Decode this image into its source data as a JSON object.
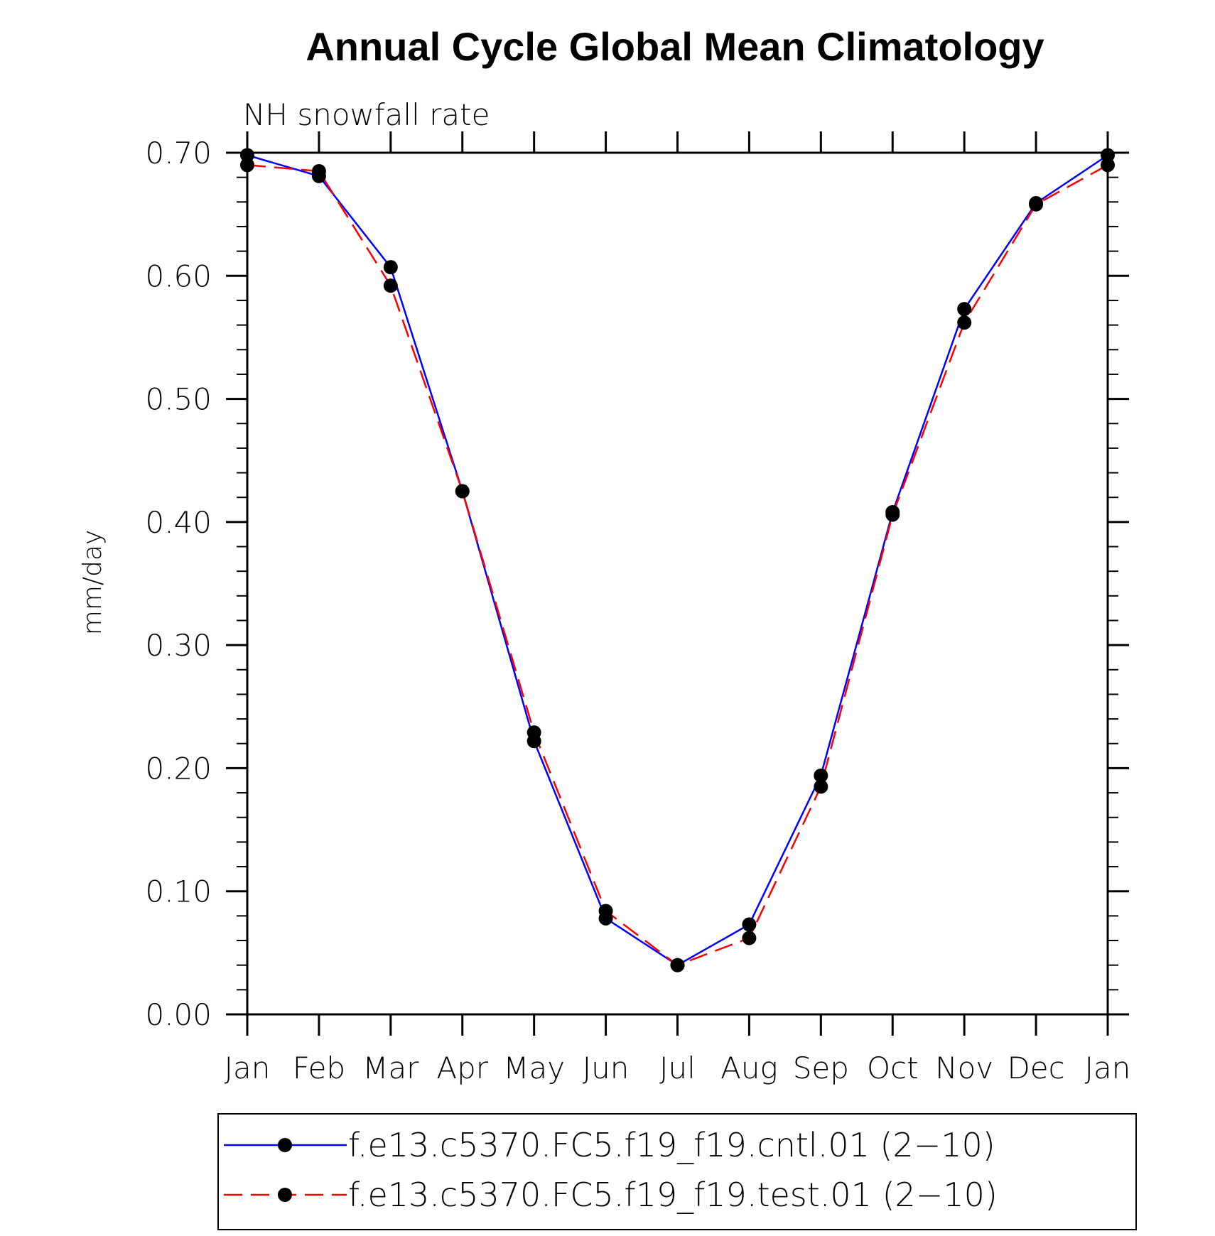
{
  "chart_data": {
    "type": "line",
    "title": "Annual Cycle Global Mean Climatology",
    "subtitle": "NH snowfall rate",
    "ylabel": "mm/day",
    "xlabel": "",
    "categories": [
      "Jan",
      "Feb",
      "Mar",
      "Apr",
      "May",
      "Jun",
      "Jul",
      "Aug",
      "Sep",
      "Oct",
      "Nov",
      "Dec",
      "Jan"
    ],
    "ylim": [
      0.0,
      0.7
    ],
    "yticks": [
      "0.00",
      "0.10",
      "0.20",
      "0.30",
      "0.40",
      "0.50",
      "0.60",
      "0.70"
    ],
    "grid": false,
    "legend_position": "bottom",
    "series": [
      {
        "name": "f.e13.c5370.FC5.f19_f19.cntl.01 (2−10)",
        "color": "#0000ff",
        "line_style": "solid",
        "marker": "filled-circle",
        "values": [
          0.698,
          0.681,
          0.607,
          0.425,
          0.222,
          0.078,
          0.04,
          0.073,
          0.194,
          0.408,
          0.573,
          0.659,
          0.698
        ]
      },
      {
        "name": "f.e13.c5370.FC5.f19_f19.test.01 (2−10)",
        "color": "#ff0000",
        "line_style": "dashed",
        "marker": "filled-circle",
        "values": [
          0.69,
          0.685,
          0.592,
          0.425,
          0.229,
          0.084,
          0.04,
          0.062,
          0.185,
          0.406,
          0.562,
          0.658,
          0.69
        ]
      }
    ]
  }
}
